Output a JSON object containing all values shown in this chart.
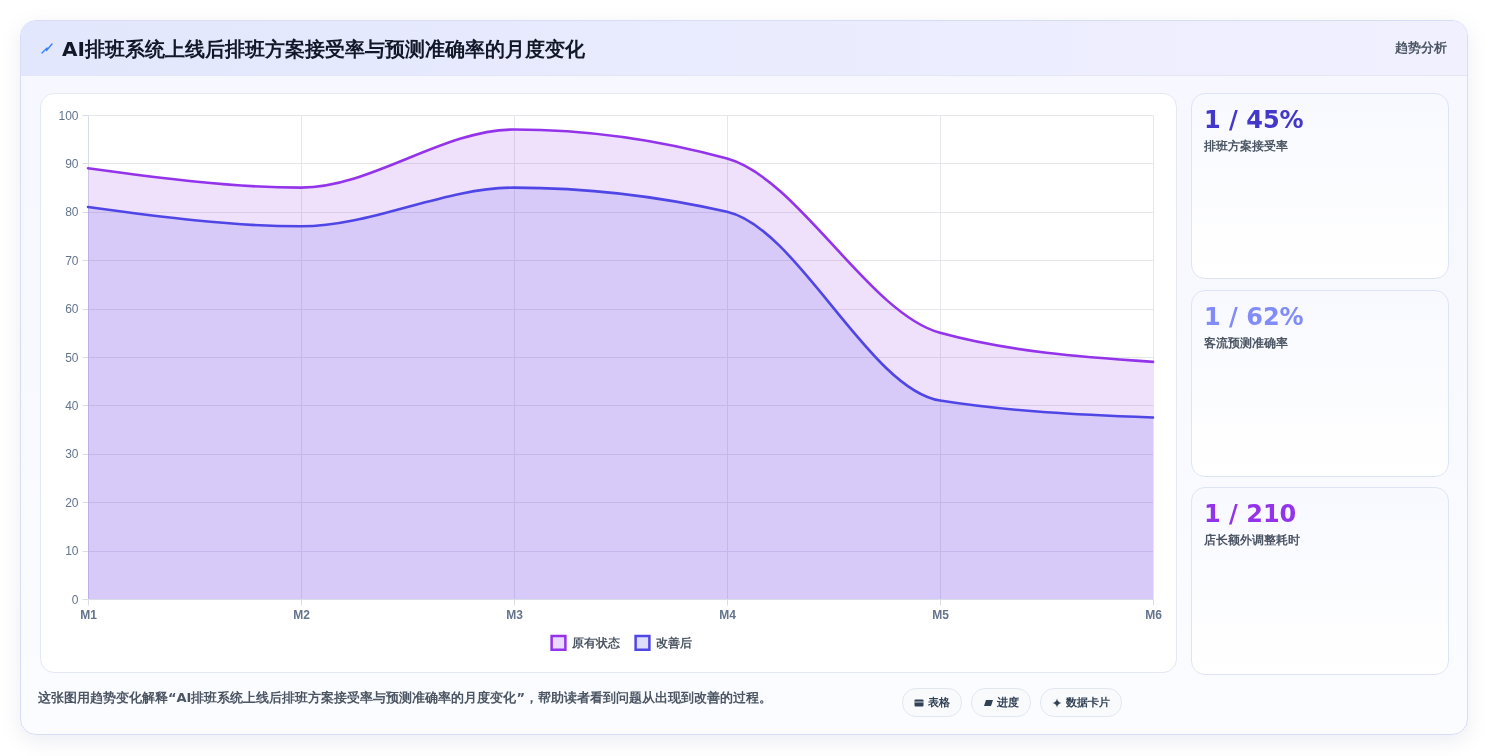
{
  "chart_data": [
    {
      "type": "area",
      "title": "AI排班系统上线后排班方案接受率与预测准确率的月度变化",
      "categories": [
        "M1",
        "M2",
        "M3",
        "M4",
        "M5",
        "M6"
      ],
      "series": [
        {
          "name": "原有状态",
          "color": "#9333ea",
          "values": [
            89,
            85,
            97,
            91,
            55,
            49
          ]
        },
        {
          "name": "改善后",
          "color": "#4f46e5",
          "values": [
            81,
            77,
            85,
            80,
            41,
            37.5
          ]
        }
      ],
      "ylim": [
        0,
        100
      ],
      "yticks": [
        0,
        10,
        20,
        30,
        40,
        50,
        60,
        70,
        80,
        90,
        100
      ],
      "grid": true,
      "legend": "bottom",
      "annotations": [
        "趋势分析",
        "这张图用趋势变化解释“AI排班系统上线后排班方案接受率与预测准确率的月度变化”，帮助读者看到问题从出现到改善的过程。",
        "表格",
        "进度",
        "数据卡片"
      ]
    },
    {
      "type": "other",
      "title": "排班方案接受率",
      "annotations": [
        "1 / 45%"
      ]
    },
    {
      "type": "other",
      "title": "客流预测准确率",
      "annotations": [
        "1 / 62%"
      ]
    },
    {
      "type": "other",
      "title": "店长额外调整耗时",
      "annotations": [
        "1 / 210"
      ]
    }
  ]
}
